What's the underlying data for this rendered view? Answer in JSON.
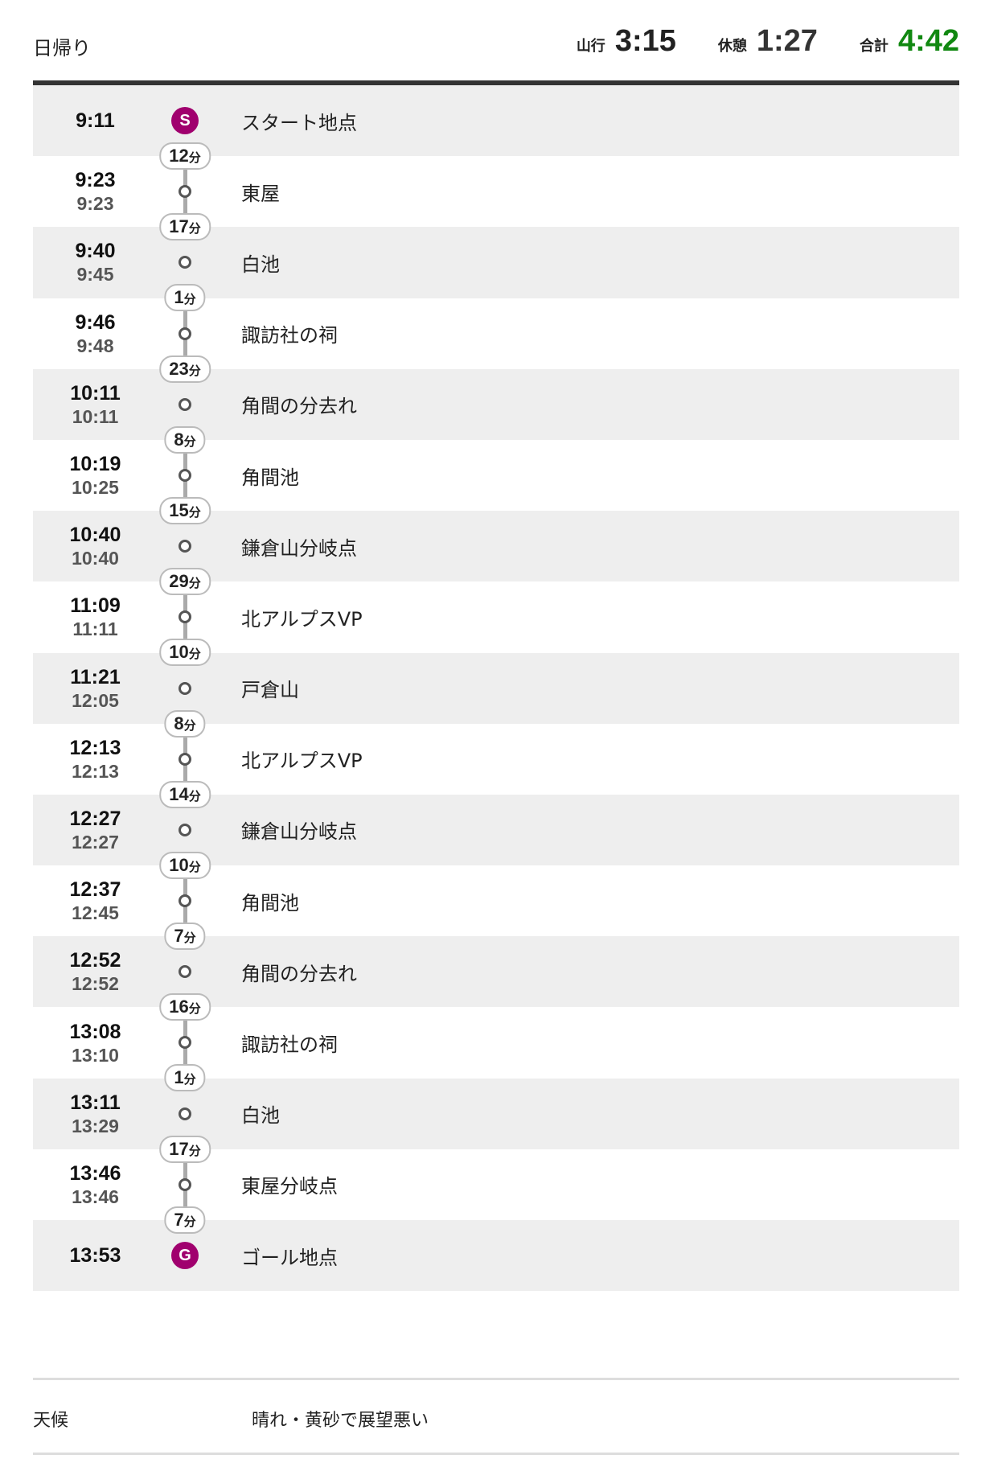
{
  "header": {
    "title": "日帰り",
    "stats": [
      {
        "label": "山行",
        "value": "3:15",
        "color": "#222222"
      },
      {
        "label": "休憩",
        "value": "1:27",
        "color": "#333333"
      },
      {
        "label": "合計",
        "value": "4:42",
        "color": "#118811"
      }
    ]
  },
  "marker_color": "#a0006e",
  "points": [
    {
      "arrive": "9:11",
      "depart": "",
      "name": "スタート地点",
      "marker": "S",
      "next_duration": "12",
      "unit": "分"
    },
    {
      "arrive": "9:23",
      "depart": "9:23",
      "name": "東屋",
      "next_duration": "17",
      "unit": "分"
    },
    {
      "arrive": "9:40",
      "depart": "9:45",
      "name": "白池",
      "next_duration": "1",
      "unit": "分"
    },
    {
      "arrive": "9:46",
      "depart": "9:48",
      "name": "諏訪社の祠",
      "next_duration": "23",
      "unit": "分"
    },
    {
      "arrive": "10:11",
      "depart": "10:11",
      "name": "角間の分去れ",
      "next_duration": "8",
      "unit": "分"
    },
    {
      "arrive": "10:19",
      "depart": "10:25",
      "name": "角間池",
      "next_duration": "15",
      "unit": "分"
    },
    {
      "arrive": "10:40",
      "depart": "10:40",
      "name": "鎌倉山分岐点",
      "next_duration": "29",
      "unit": "分"
    },
    {
      "arrive": "11:09",
      "depart": "11:11",
      "name": "北アルプスVP",
      "next_duration": "10",
      "unit": "分"
    },
    {
      "arrive": "11:21",
      "depart": "12:05",
      "name": "戸倉山",
      "next_duration": "8",
      "unit": "分"
    },
    {
      "arrive": "12:13",
      "depart": "12:13",
      "name": "北アルプスVP",
      "next_duration": "14",
      "unit": "分"
    },
    {
      "arrive": "12:27",
      "depart": "12:27",
      "name": "鎌倉山分岐点",
      "next_duration": "10",
      "unit": "分"
    },
    {
      "arrive": "12:37",
      "depart": "12:45",
      "name": "角間池",
      "next_duration": "7",
      "unit": "分"
    },
    {
      "arrive": "12:52",
      "depart": "12:52",
      "name": "角間の分去れ",
      "next_duration": "16",
      "unit": "分"
    },
    {
      "arrive": "13:08",
      "depart": "13:10",
      "name": "諏訪社の祠",
      "next_duration": "1",
      "unit": "分"
    },
    {
      "arrive": "13:11",
      "depart": "13:29",
      "name": "白池",
      "next_duration": "17",
      "unit": "分"
    },
    {
      "arrive": "13:46",
      "depart": "13:46",
      "name": "東屋分岐点",
      "next_duration": "7",
      "unit": "分"
    },
    {
      "arrive": "13:53",
      "depart": "",
      "name": "ゴール地点",
      "marker": "G",
      "next_duration": "",
      "unit": ""
    }
  ],
  "weather": {
    "label": "天候",
    "value": "晴れ・黄砂で展望悪い"
  }
}
